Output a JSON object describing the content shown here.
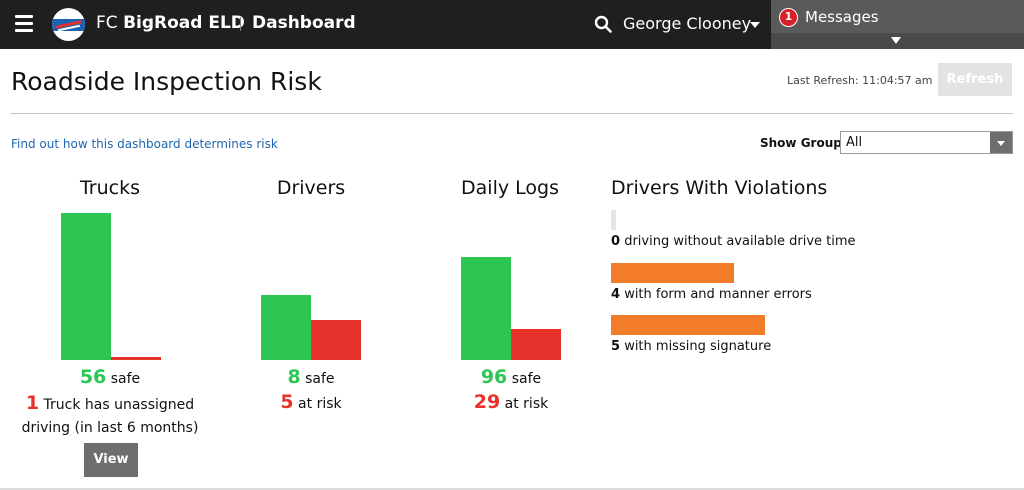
{
  "topbar": {
    "brand_prefix": "FC ",
    "brand_name": "BigRoad ELD",
    "page_name": "Dashboard",
    "user_name": "George Clooney",
    "messages_count": "1",
    "messages_label": "Messages"
  },
  "header": {
    "title": "Roadside Inspection Risk",
    "last_refresh": "Last Refresh: 11:04:57 am",
    "refresh_label": "Refresh"
  },
  "controls": {
    "risk_link": "Find out how this dashboard determines risk",
    "show_group_label": "Show Group:",
    "show_group_value": "All"
  },
  "panels": {
    "trucks": {
      "title": "Trucks",
      "safe": 56,
      "safe_label": "safe",
      "unassigned": 1,
      "unassigned_line1": "Truck has unassigned",
      "unassigned_line2": "driving (in last 6 months)",
      "view_label": "View"
    },
    "drivers": {
      "title": "Drivers",
      "safe": 8,
      "safe_label": "safe",
      "at_risk": 5,
      "at_risk_label": "at risk"
    },
    "daily_logs": {
      "title": "Daily Logs",
      "safe": 96,
      "safe_label": "safe",
      "at_risk": 29,
      "at_risk_label": "at risk"
    }
  },
  "violations": {
    "title": "Drivers With Violations",
    "items": [
      {
        "count": 0,
        "label": "driving without available drive time"
      },
      {
        "count": 4,
        "label": "with form and manner errors"
      },
      {
        "count": 5,
        "label": "with missing signature"
      }
    ]
  },
  "colors": {
    "safe": "#2dc653",
    "at_risk": "#e7312b",
    "violation": "#f27c2a",
    "link": "#1f66b1"
  }
}
